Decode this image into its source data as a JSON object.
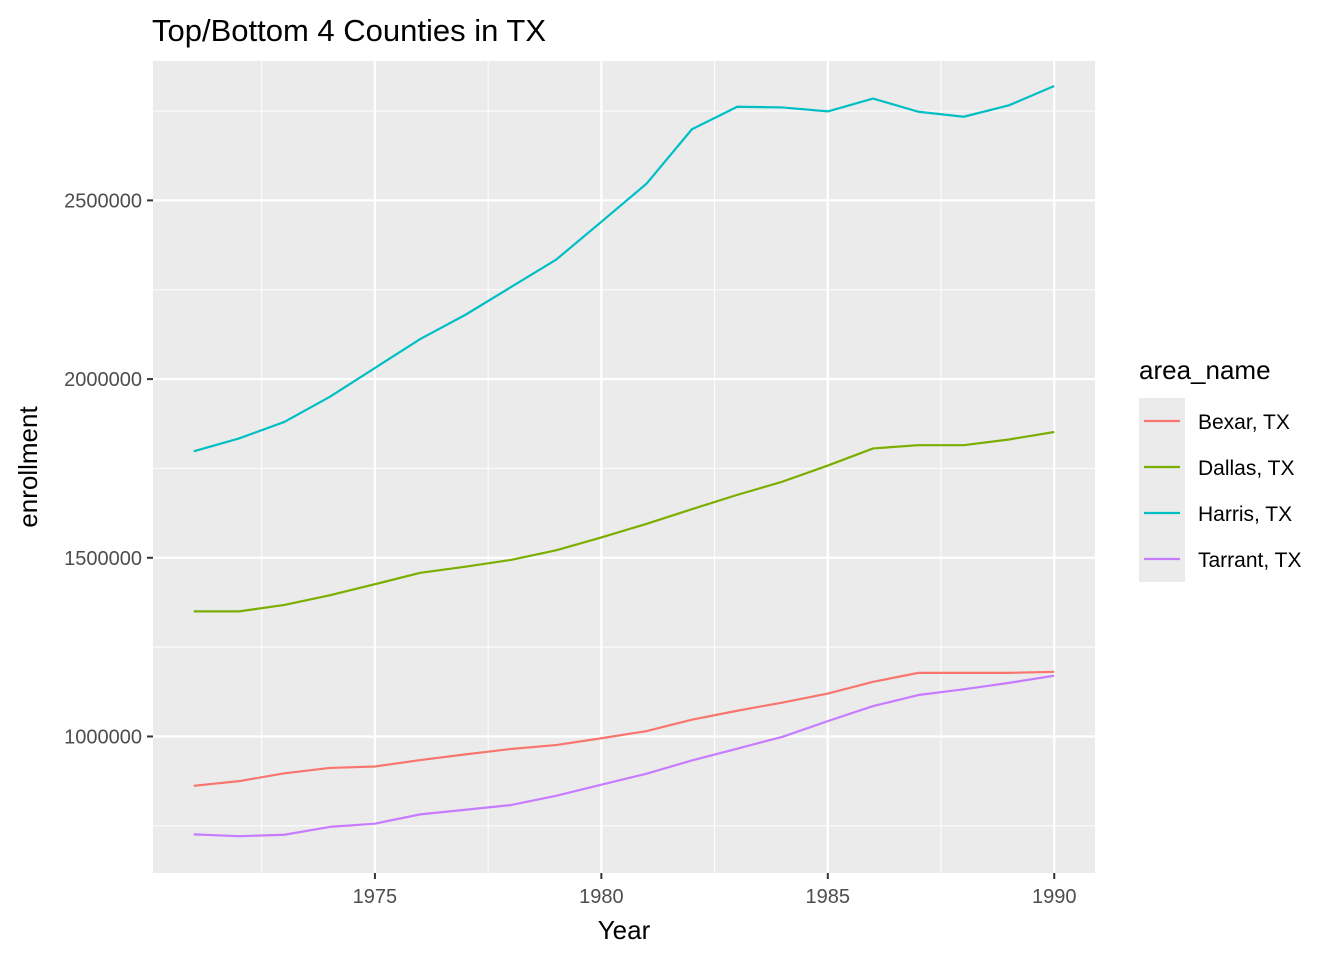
{
  "chart_data": {
    "type": "line",
    "title": "Top/Bottom 4 Counties in TX",
    "xlabel": "Year",
    "ylabel": "enrollment",
    "x": [
      1971,
      1972,
      1973,
      1974,
      1975,
      1976,
      1977,
      1978,
      1979,
      1980,
      1981,
      1982,
      1983,
      1984,
      1985,
      1986,
      1987,
      1988,
      1989,
      1990
    ],
    "xlim": [
      1970.1,
      1990.9
    ],
    "ylim": [
      618000,
      2890000
    ],
    "x_ticks": [
      1975,
      1980,
      1985,
      1990
    ],
    "y_ticks": [
      1000000,
      1500000,
      2000000,
      2500000
    ],
    "x_tick_labels": [
      "1975",
      "1980",
      "1985",
      "1990"
    ],
    "y_tick_labels": [
      "1000000",
      "1500000",
      "2000000",
      "2500000"
    ],
    "grid": true,
    "legend": {
      "title": "area_name",
      "position": "right"
    },
    "series": [
      {
        "name": "Bexar, TX",
        "color": "#F8766D",
        "values": [
          862000,
          875000,
          897000,
          912000,
          916000,
          934000,
          950000,
          965000,
          976000,
          995000,
          1015000,
          1047000,
          1072000,
          1095000,
          1120000,
          1153000,
          1178000,
          1178000,
          1178000,
          1181000
        ]
      },
      {
        "name": "Dallas, TX",
        "color": "#7CAE00",
        "values": [
          1350000,
          1350000,
          1368000,
          1395000,
          1426000,
          1458000,
          1475000,
          1494000,
          1521000,
          1557000,
          1595000,
          1636000,
          1676000,
          1713000,
          1758000,
          1806000,
          1815000,
          1815000,
          1831000,
          1852000
        ]
      },
      {
        "name": "Harris, TX",
        "color": "#00BFC4",
        "values": [
          1798000,
          1834000,
          1880000,
          1950000,
          2031000,
          2112000,
          2180000,
          2257000,
          2334000,
          2440000,
          2547000,
          2699000,
          2762000,
          2760000,
          2749000,
          2785000,
          2748000,
          2734000,
          2766000,
          2820000
        ]
      },
      {
        "name": "Tarrant, TX",
        "color": "#C77CFF",
        "values": [
          726000,
          721000,
          725000,
          747000,
          756000,
          782000,
          795000,
          808000,
          834000,
          865000,
          896000,
          933000,
          966000,
          999000,
          1043000,
          1085000,
          1116000,
          1132000,
          1150000,
          1170000
        ]
      }
    ]
  }
}
